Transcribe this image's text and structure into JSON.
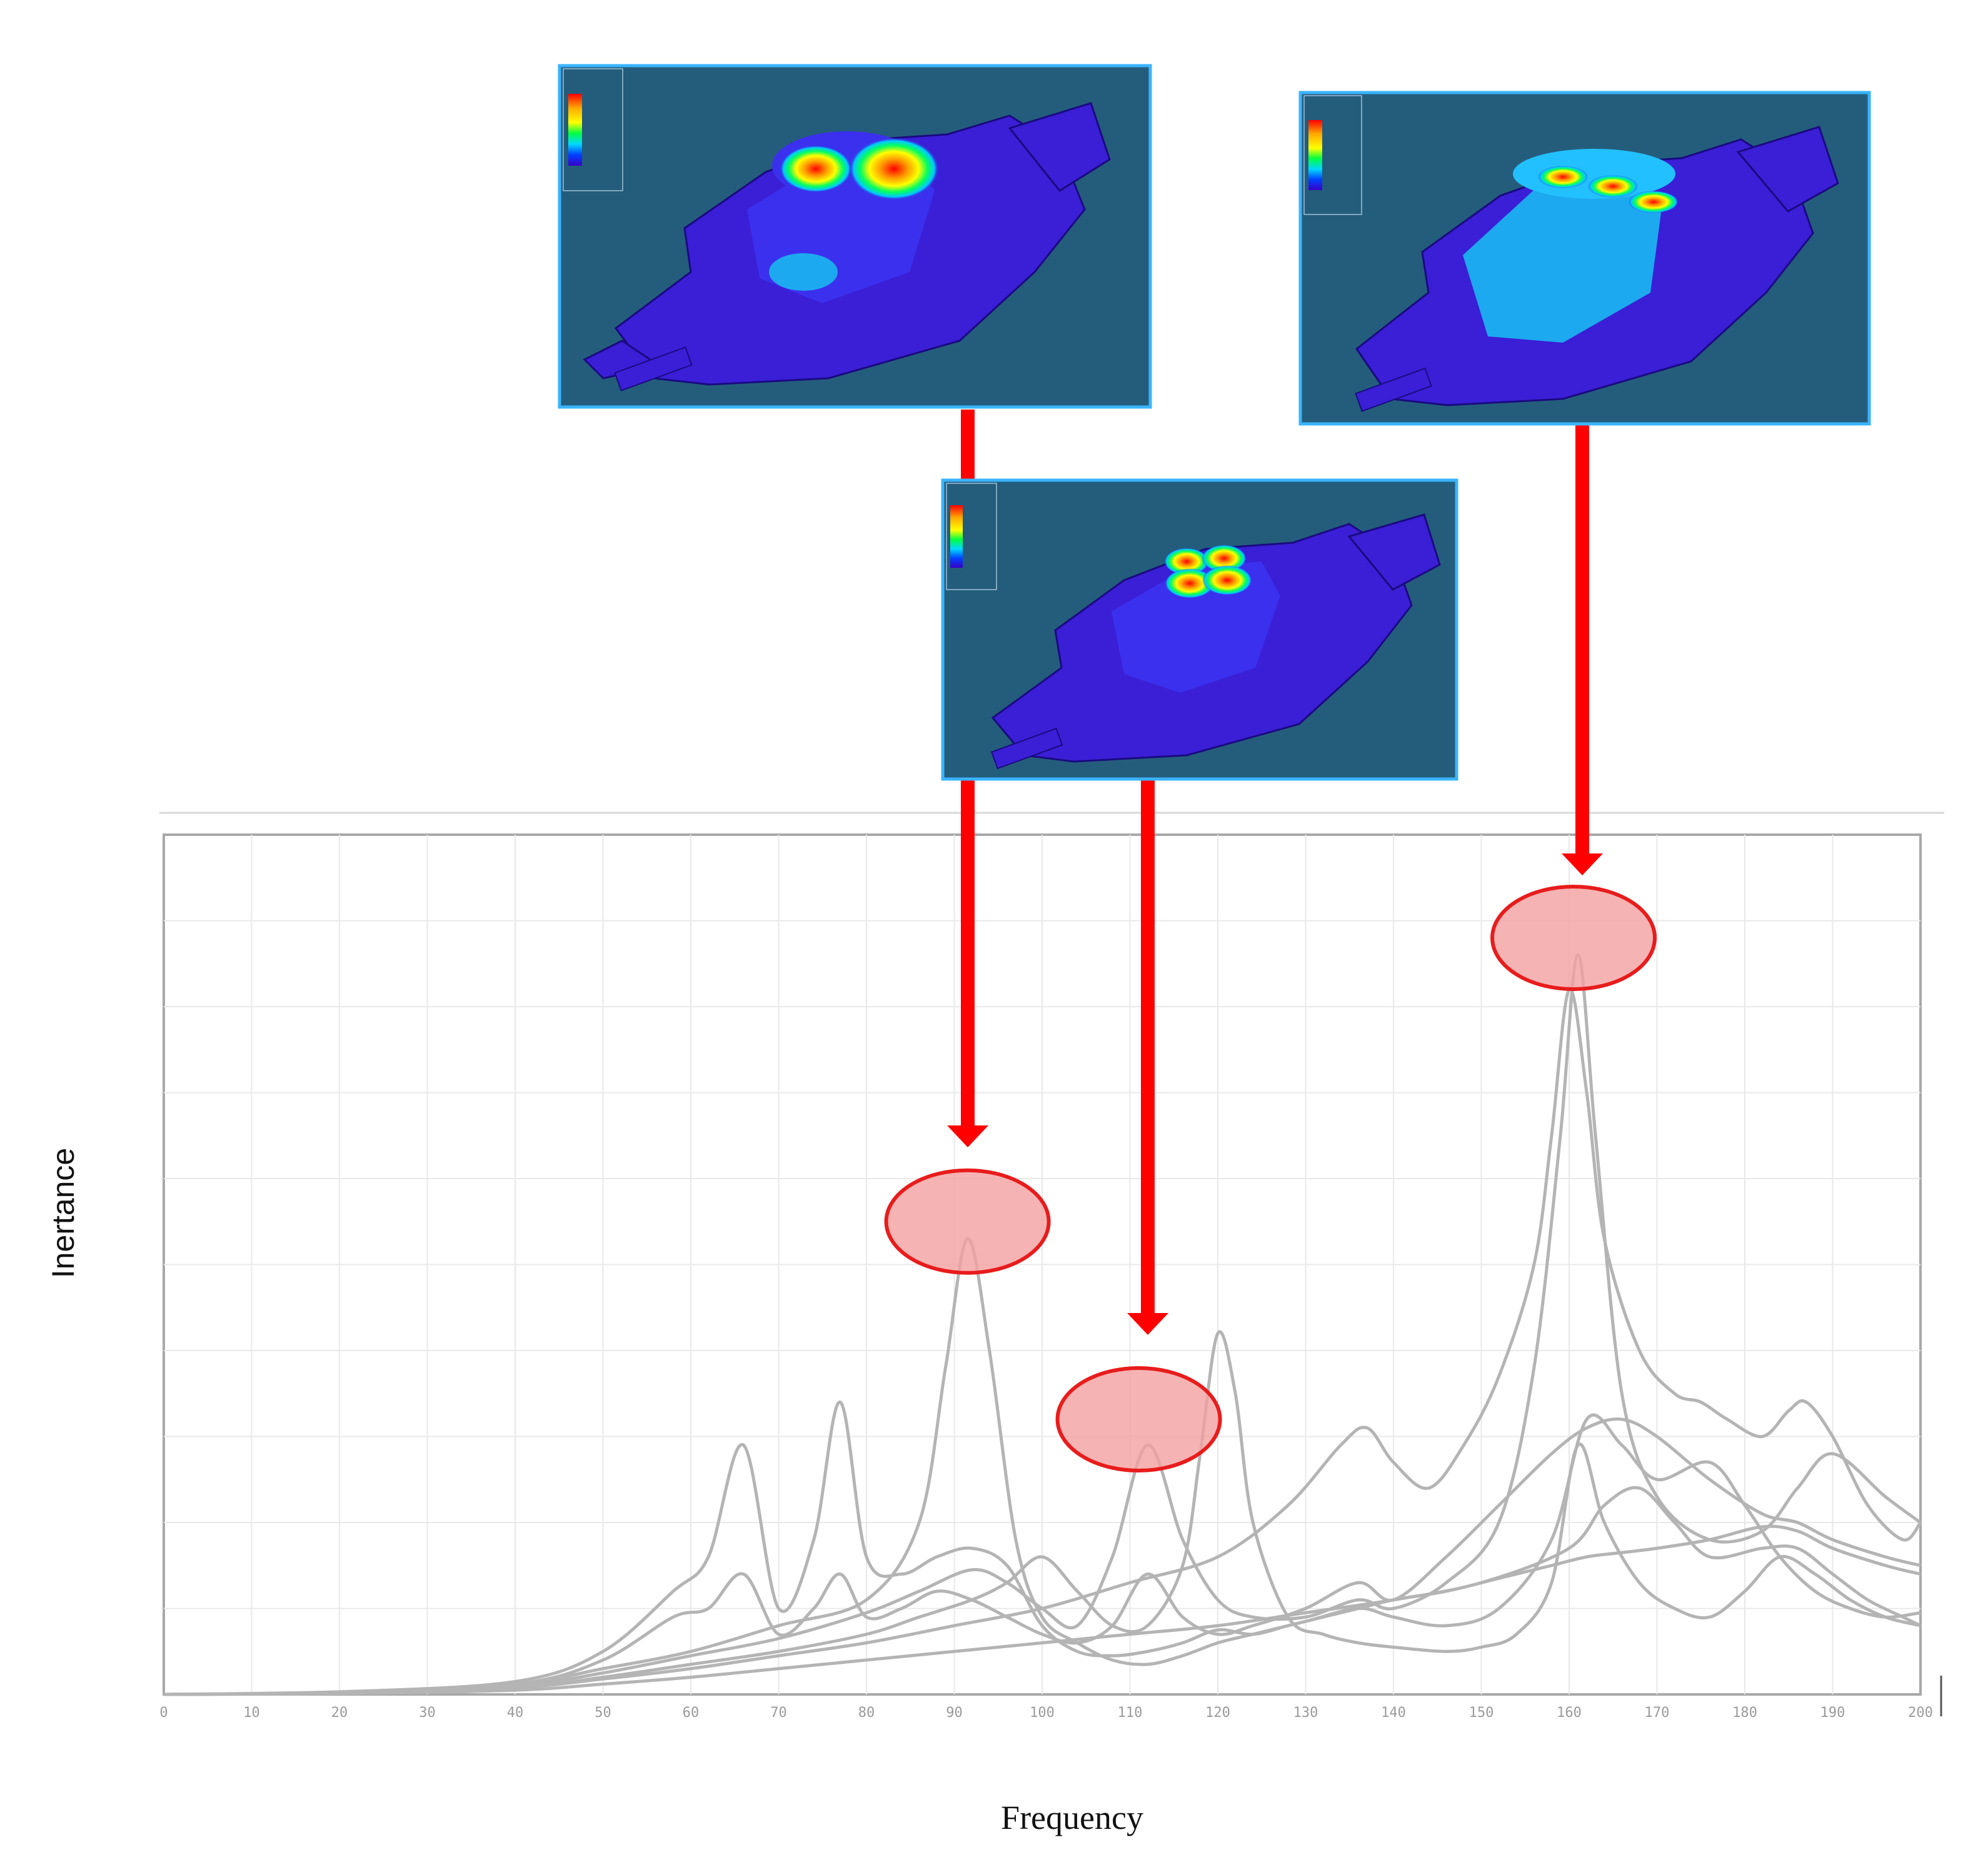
{
  "chart_data": {
    "type": "line",
    "xlabel": "Frequency",
    "ylabel": "Inertance",
    "xlim": [
      0,
      200
    ],
    "ylim": [
      0,
      10
    ],
    "x_ticks": [
      0,
      10,
      20,
      30,
      40,
      50,
      60,
      70,
      80,
      90,
      100,
      110,
      120,
      130,
      140,
      150,
      160,
      170,
      180,
      190,
      200
    ],
    "x_tick_labels": [
      "0",
      "10",
      "20",
      "30",
      "40",
      "50",
      "60",
      "70",
      "80",
      "90",
      "100",
      "110",
      "120",
      "130",
      "140",
      "150",
      "160",
      "170",
      "180",
      "190",
      "200"
    ],
    "grid": true,
    "series_color": "#b4b4b4",
    "series": [
      {
        "x": [
          0,
          20,
          40,
          50,
          58,
          62,
          66,
          70,
          74,
          77,
          80,
          84,
          88,
          92,
          96,
          100,
          104,
          108,
          112,
          116,
          120,
          124,
          128,
          132,
          136,
          140,
          146,
          152,
          158,
          162,
          166,
          170,
          176,
          182,
          186,
          190,
          196,
          200
        ],
        "y": [
          0,
          0.03,
          0.15,
          0.5,
          1.2,
          1.6,
          2.9,
          1.0,
          1.8,
          3.4,
          1.6,
          1.4,
          1.6,
          1.7,
          1.5,
          0.8,
          0.5,
          0.45,
          0.5,
          0.6,
          0.75,
          0.7,
          0.8,
          0.9,
          1.0,
          1.1,
          1.2,
          1.35,
          1.5,
          1.6,
          1.65,
          1.7,
          1.8,
          1.95,
          1.9,
          1.7,
          1.5,
          1.4
        ]
      },
      {
        "x": [
          0,
          20,
          40,
          50,
          58,
          62,
          66,
          70,
          74,
          77,
          80,
          84,
          88,
          92,
          96,
          100,
          104,
          108,
          112,
          116,
          120,
          124,
          130,
          136,
          140,
          146,
          152,
          158,
          162,
          166,
          170,
          176,
          182,
          186,
          190,
          196,
          200
        ],
        "y": [
          0,
          0.03,
          0.12,
          0.4,
          0.9,
          1.0,
          1.4,
          0.7,
          1.0,
          1.4,
          0.9,
          1.0,
          1.2,
          1.1,
          0.9,
          0.7,
          0.6,
          0.8,
          1.4,
          0.9,
          0.7,
          0.8,
          1.0,
          1.3,
          1.1,
          1.6,
          2.2,
          2.8,
          3.1,
          3.2,
          3.0,
          2.5,
          2.1,
          2.0,
          1.8,
          1.6,
          1.5
        ]
      },
      {
        "x": [
          0,
          20,
          40,
          50,
          60,
          70,
          80,
          86,
          89,
          91.5,
          94,
          97,
          100,
          104,
          108,
          112,
          116,
          120,
          124,
          130,
          136,
          140,
          146,
          152,
          158,
          162,
          166,
          170,
          176,
          180,
          184,
          188,
          192,
          196,
          200
        ],
        "y": [
          0,
          0.02,
          0.12,
          0.3,
          0.5,
          0.8,
          1.1,
          2.0,
          3.8,
          5.3,
          4.0,
          1.8,
          0.9,
          0.6,
          0.4,
          0.35,
          0.45,
          0.6,
          0.7,
          0.85,
          1.0,
          0.9,
          0.8,
          1.0,
          1.8,
          3.2,
          2.9,
          2.5,
          2.7,
          2.2,
          1.6,
          1.2,
          1.0,
          0.9,
          0.95
        ]
      },
      {
        "x": [
          0,
          20,
          40,
          50,
          60,
          70,
          80,
          86,
          92,
          96,
          100,
          104,
          108,
          112,
          116,
          120,
          124,
          130,
          136,
          140,
          146,
          152,
          156,
          159,
          161,
          163,
          166,
          170,
          176,
          182,
          186,
          190,
          196,
          200
        ],
        "y": [
          0,
          0.02,
          0.1,
          0.25,
          0.45,
          0.65,
          0.95,
          1.2,
          1.45,
          1.3,
          1.0,
          0.8,
          1.6,
          2.9,
          1.8,
          1.1,
          0.9,
          0.9,
          1.1,
          1.0,
          1.3,
          2.0,
          3.8,
          6.5,
          8.6,
          6.5,
          3.5,
          2.3,
          1.8,
          1.9,
          2.4,
          2.8,
          2.3,
          2.0
        ]
      },
      {
        "x": [
          0,
          20,
          40,
          50,
          60,
          70,
          80,
          86,
          92,
          96,
          100,
          104,
          108,
          112,
          116,
          118,
          120,
          122,
          124,
          128,
          132,
          136,
          140,
          146,
          150,
          154,
          158,
          161,
          164,
          168,
          172,
          176,
          180,
          184,
          188,
          192,
          196,
          200
        ],
        "y": [
          0,
          0.02,
          0.08,
          0.2,
          0.35,
          0.5,
          0.7,
          0.9,
          1.1,
          1.3,
          1.6,
          1.2,
          0.8,
          0.8,
          1.5,
          2.8,
          4.2,
          3.5,
          2.0,
          0.9,
          0.7,
          0.6,
          0.55,
          0.5,
          0.55,
          0.7,
          1.3,
          2.9,
          2.0,
          1.3,
          1.0,
          0.9,
          1.2,
          1.6,
          1.4,
          1.1,
          0.9,
          0.8
        ]
      },
      {
        "x": [
          0,
          20,
          40,
          50,
          60,
          70,
          80,
          90,
          100,
          110,
          120,
          128,
          134,
          137,
          140,
          144,
          148,
          152,
          156,
          158,
          160,
          162,
          164,
          168,
          172,
          175,
          178,
          182,
          185,
          187,
          190,
          194,
          198,
          200
        ],
        "y": [
          0,
          0.02,
          0.08,
          0.18,
          0.3,
          0.45,
          0.6,
          0.8,
          1.0,
          1.3,
          1.6,
          2.2,
          2.9,
          3.1,
          2.7,
          2.4,
          2.9,
          3.7,
          5.0,
          6.5,
          8.2,
          7.0,
          5.3,
          4.0,
          3.5,
          3.4,
          3.2,
          3.0,
          3.3,
          3.4,
          3.0,
          2.2,
          1.8,
          2.0
        ]
      },
      {
        "x": [
          0,
          20,
          40,
          50,
          60,
          70,
          80,
          90,
          100,
          110,
          120,
          130,
          140,
          150,
          160,
          164,
          168,
          172,
          176,
          182,
          186,
          190,
          194,
          198,
          200
        ],
        "y": [
          0,
          0.01,
          0.05,
          0.12,
          0.2,
          0.3,
          0.4,
          0.5,
          0.6,
          0.7,
          0.8,
          0.95,
          1.1,
          1.3,
          1.7,
          2.2,
          2.4,
          2.0,
          1.6,
          1.7,
          1.7,
          1.4,
          1.1,
          0.9,
          0.8
        ]
      }
    ],
    "highlighted_peaks": [
      {
        "x": 91.5,
        "y": 5.5
      },
      {
        "x": 111,
        "y": 3.2
      },
      {
        "x": 160.5,
        "y": 8.8
      }
    ]
  },
  "mode_shapes": [
    {
      "label": "mode-92hz",
      "bg": "#245d7c",
      "body": "#3a1fd6",
      "panel": "#1da9f0"
    },
    {
      "label": "mode-111hz",
      "bg": "#245d7c",
      "body": "#3a1fd6",
      "panel": "#1da9f0"
    },
    {
      "label": "mode-160hz",
      "bg": "#245d7c",
      "body": "#3a1fd6",
      "panel": "#1da9f0"
    }
  ],
  "colors": {
    "arrow": "#ff0000",
    "ellipse_fill": "#f4a0a0",
    "ellipse_stroke": "#e81c1c",
    "grid": "#e8e8e8",
    "frame": "#a8a8a8"
  }
}
